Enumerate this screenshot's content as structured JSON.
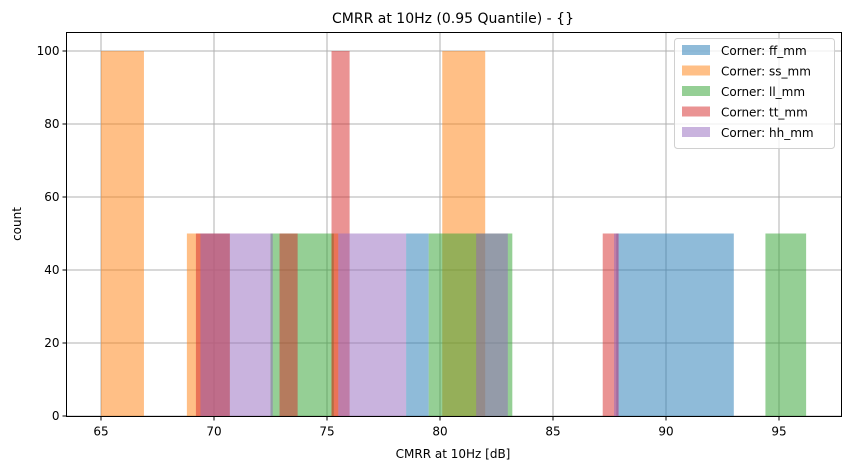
{
  "chart_data": {
    "type": "bar",
    "subtype": "overlapping-histogram",
    "title": "CMRR at 10Hz (0.95 Quantile) - {}",
    "xlabel": "CMRR at 10Hz [dB]",
    "ylabel": "count",
    "xlim": [
      63.5,
      97.8
    ],
    "ylim": [
      0,
      105
    ],
    "xticks": [
      65,
      70,
      75,
      80,
      85,
      90,
      95
    ],
    "yticks": [
      0,
      20,
      40,
      60,
      80,
      100
    ],
    "grid": true,
    "legend_position": "upper right",
    "bar_alpha": 0.5,
    "series": [
      {
        "name": "Corner: ff_mm",
        "color": "#1f77b4",
        "bins": [
          {
            "x0": 78.5,
            "x1": 79.5,
            "count": 50
          },
          {
            "x0": 87.8,
            "x1": 93.0,
            "count": 50
          }
        ]
      },
      {
        "name": "Corner: ss_mm",
        "color": "#ff7f0e",
        "bins": [
          {
            "x0": 65.0,
            "x1": 66.9,
            "count": 100
          },
          {
            "x0": 68.8,
            "x1": 70.7,
            "count": 50
          },
          {
            "x0": 75.2,
            "x1": 75.5,
            "count": 50
          },
          {
            "x0": 80.1,
            "x1": 82.0,
            "count": 100
          }
        ]
      },
      {
        "name": "Corner: ll_mm",
        "color": "#2ca02c",
        "bins": [
          {
            "x0": 72.5,
            "x1": 75.3,
            "count": 50
          },
          {
            "x0": 79.5,
            "x1": 83.2,
            "count": 50
          },
          {
            "x0": 94.4,
            "x1": 96.2,
            "count": 50
          }
        ]
      },
      {
        "name": "Corner: tt_mm",
        "color": "#d62728",
        "bins": [
          {
            "x0": 69.2,
            "x1": 70.7,
            "count": 50
          },
          {
            "x0": 72.9,
            "x1": 73.7,
            "count": 50
          },
          {
            "x0": 75.2,
            "x1": 76.0,
            "count": 100
          },
          {
            "x0": 87.2,
            "x1": 87.9,
            "count": 50
          }
        ]
      },
      {
        "name": "Corner: hh_mm",
        "color": "#9467bd",
        "bins": [
          {
            "x0": 69.4,
            "x1": 72.6,
            "count": 50
          },
          {
            "x0": 75.5,
            "x1": 78.5,
            "count": 50
          },
          {
            "x0": 81.6,
            "x1": 83.0,
            "count": 50
          },
          {
            "x0": 87.7,
            "x1": 87.9,
            "count": 50
          }
        ]
      }
    ]
  },
  "legend": {
    "items": [
      {
        "label": "Corner: ff_mm",
        "color": "#1f77b4"
      },
      {
        "label": "Corner: ss_mm",
        "color": "#ff7f0e"
      },
      {
        "label": "Corner: ll_mm",
        "color": "#2ca02c"
      },
      {
        "label": "Corner: tt_mm",
        "color": "#d62728"
      },
      {
        "label": "Corner: hh_mm",
        "color": "#9467bd"
      }
    ]
  },
  "axes": {
    "x_tick_labels": [
      "65",
      "70",
      "75",
      "80",
      "85",
      "90",
      "95"
    ],
    "y_tick_labels": [
      "0",
      "20",
      "40",
      "60",
      "80",
      "100"
    ]
  }
}
